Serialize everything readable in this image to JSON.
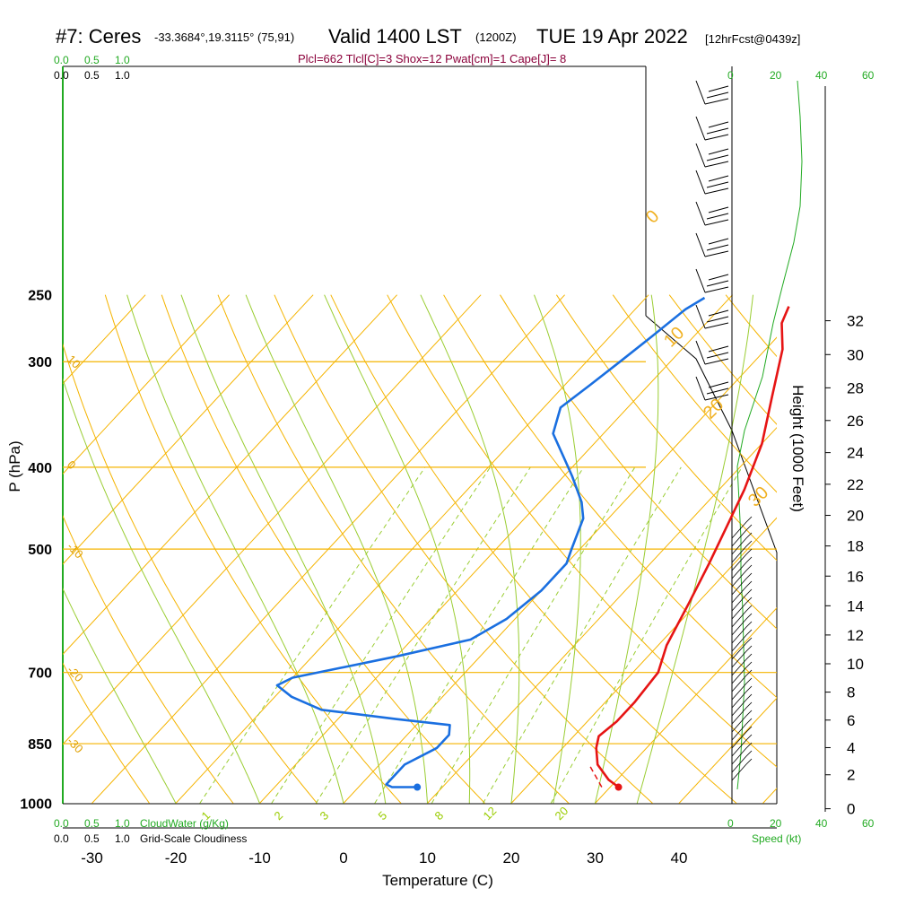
{
  "header": {
    "station": "#7: Ceres",
    "coords": "-33.3684°,19.3115° (75,91)",
    "valid": "Valid 1400 LST",
    "utc": "(1200Z)",
    "date": "TUE 19 Apr 2022",
    "forecast": "[12hrFcst@0439z]",
    "indices": "Plcl=662 Tlcl[C]=3 Shox=12 Pwat[cm]=1 Cape[J]= 8"
  },
  "axes": {
    "xlabel": "Temperature (C)",
    "ylabel": "P (hPa)",
    "right_label": "Height (1000 Feet)",
    "speed_label": "Speed (kt)"
  },
  "pressure_ticks": [
    "250",
    "300",
    "400",
    "500",
    "700",
    "850",
    "1000"
  ],
  "temp_ticks": [
    "-30",
    "-20",
    "-10",
    "0",
    "10",
    "20",
    "30",
    "40"
  ],
  "height_ticks": [
    "0",
    "2",
    "4",
    "6",
    "8",
    "10",
    "12",
    "14",
    "16",
    "18",
    "20",
    "22",
    "24",
    "26",
    "28",
    "30",
    "32"
  ],
  "cloudwater": {
    "top_green": [
      "0.0",
      "0.5",
      "1.0"
    ],
    "top_black": [
      "0.0",
      "0.5",
      "1.0"
    ],
    "bottom_green": [
      "0.0",
      "0.5",
      "1.0"
    ],
    "bottom_green_label": "CloudWater (g/Kg)",
    "bottom_black": [
      "0.0",
      "0.5",
      "1.0"
    ],
    "bottom_black_label": "Grid-Scale Cloudiness"
  },
  "speed_axis": {
    "top_black": [
      "0",
      "20",
      "40"
    ],
    "top_green": [
      "20",
      "40",
      "60"
    ],
    "bottom_black": [
      "0",
      "20",
      "40"
    ],
    "bottom_green": [
      "40",
      "60"
    ]
  },
  "isotherm_labels": [
    "10",
    "0",
    "-10",
    "-20",
    "-30"
  ],
  "theta_labels": [
    "0",
    "10",
    "20",
    "30"
  ],
  "mixratio_labels": [
    "1",
    "2",
    "3",
    "5",
    "8",
    "12",
    "20"
  ],
  "colors": {
    "temperature": "#e61414",
    "dewpoint": "#1a6fe0",
    "isotherm": "#f5b400",
    "dry_adiabat": "#f5b400",
    "moist_adiabat": "#9acd32",
    "mixing_ratio": "#9acd32",
    "cloudwater": "#22aa22",
    "wind_speed": "#22aa22"
  },
  "chart_data": {
    "type": "line",
    "title": "Valid 1400 LST (1200Z) TUE 19 Apr 2022",
    "xlabel": "Temperature (C)",
    "ylabel": "P (hPa)",
    "xlim": [
      -30,
      40
    ],
    "ylim": [
      1000,
      250
    ],
    "log_y": true,
    "series": [
      {
        "name": "Temperature",
        "points": [
          [
            31,
            957
          ],
          [
            29,
            938
          ],
          [
            26,
            900
          ],
          [
            24,
            860
          ],
          [
            23,
            833
          ],
          [
            23.5,
            800
          ],
          [
            23.5,
            760
          ],
          [
            23,
            700
          ],
          [
            21,
            650
          ],
          [
            19,
            580
          ],
          [
            17,
            520
          ],
          [
            15,
            470
          ],
          [
            13,
            425
          ],
          [
            10,
            375
          ],
          [
            6,
            330
          ],
          [
            2,
            290
          ],
          [
            -1,
            270
          ],
          [
            -2,
            258
          ]
        ]
      },
      {
        "name": "Dewpoint",
        "points": [
          [
            7,
            957
          ],
          [
            4,
            957
          ],
          [
            3,
            950
          ],
          [
            3,
            900
          ],
          [
            5,
            860
          ],
          [
            5,
            830
          ],
          [
            4,
            808
          ],
          [
            -3,
            795
          ],
          [
            -13,
            775
          ],
          [
            -18,
            748
          ],
          [
            -21,
            725
          ],
          [
            -20,
            710
          ],
          [
            -10,
            670
          ],
          [
            -3,
            640
          ],
          [
            -1,
            605
          ],
          [
            0,
            560
          ],
          [
            0,
            520
          ],
          [
            -1,
            500
          ],
          [
            -3,
            460
          ],
          [
            -5,
            440
          ],
          [
            -9,
            410
          ],
          [
            -12,
            390
          ],
          [
            -16,
            365
          ],
          [
            -18,
            340
          ],
          [
            -17,
            320
          ],
          [
            -16,
            300
          ],
          [
            -15,
            280
          ],
          [
            -14,
            260
          ],
          [
            -13,
            252
          ]
        ]
      }
    ]
  }
}
